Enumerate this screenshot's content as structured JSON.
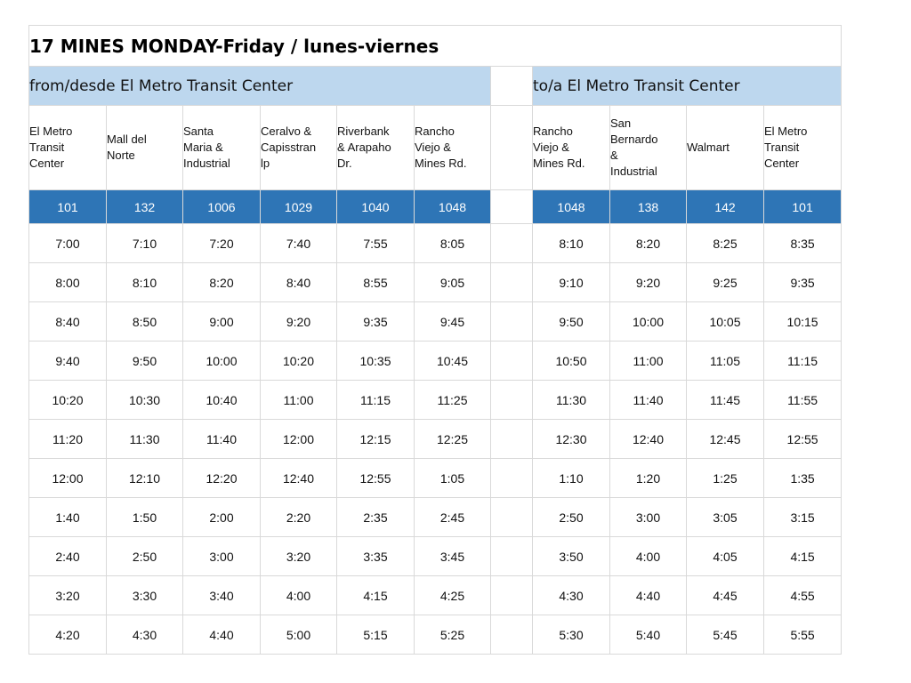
{
  "title": "17 MINES MONDAY-Friday / lunes-viernes",
  "from_header": "from/desde El Metro Transit Center",
  "to_header": "to/a El Metro Transit Center",
  "from_stops": [
    {
      "name": "El Metro\nTransit\nCenter",
      "id": "101"
    },
    {
      "name": "Mall del\nNorte",
      "id": "132"
    },
    {
      "name": "Santa\nMaria &\nIndustrial",
      "id": "1006"
    },
    {
      "name": "Ceralvo &\nCapisstran\nlp",
      "id": "1029"
    },
    {
      "name": "Riverbank\n& Arapaho\nDr.",
      "id": "1040"
    },
    {
      "name": "Rancho\nViejo &\nMines Rd.",
      "id": "1048"
    }
  ],
  "to_stops": [
    {
      "name": "Rancho\nViejo &\nMines Rd.",
      "id": "1048"
    },
    {
      "name": "San\nBernardo\n&\nIndustrial",
      "id": "138"
    },
    {
      "name": "Walmart",
      "id": "142"
    },
    {
      "name": "El Metro\nTransit\nCenter",
      "id": "101"
    }
  ],
  "trips": [
    {
      "from": [
        "7:00",
        "7:10",
        "7:20",
        "7:40",
        "7:55",
        "8:05"
      ],
      "to": [
        "8:10",
        "8:20",
        "8:25",
        "8:35"
      ]
    },
    {
      "from": [
        "8:00",
        "8:10",
        "8:20",
        "8:40",
        "8:55",
        "9:05"
      ],
      "to": [
        "9:10",
        "9:20",
        "9:25",
        "9:35"
      ]
    },
    {
      "from": [
        "8:40",
        "8:50",
        "9:00",
        "9:20",
        "9:35",
        "9:45"
      ],
      "to": [
        "9:50",
        "10:00",
        "10:05",
        "10:15"
      ]
    },
    {
      "from": [
        "9:40",
        "9:50",
        "10:00",
        "10:20",
        "10:35",
        "10:45"
      ],
      "to": [
        "10:50",
        "11:00",
        "11:05",
        "11:15"
      ]
    },
    {
      "from": [
        "10:20",
        "10:30",
        "10:40",
        "11:00",
        "11:15",
        "11:25"
      ],
      "to": [
        "11:30",
        "11:40",
        "11:45",
        "11:55"
      ]
    },
    {
      "from": [
        "11:20",
        "11:30",
        "11:40",
        "12:00",
        "12:15",
        "12:25"
      ],
      "to": [
        "12:30",
        "12:40",
        "12:45",
        "12:55"
      ]
    },
    {
      "from": [
        "12:00",
        "12:10",
        "12:20",
        "12:40",
        "12:55",
        "1:05"
      ],
      "to": [
        "1:10",
        "1:20",
        "1:25",
        "1:35"
      ]
    },
    {
      "from": [
        "1:40",
        "1:50",
        "2:00",
        "2:20",
        "2:35",
        "2:45"
      ],
      "to": [
        "2:50",
        "3:00",
        "3:05",
        "3:15"
      ]
    },
    {
      "from": [
        "2:40",
        "2:50",
        "3:00",
        "3:20",
        "3:35",
        "3:45"
      ],
      "to": [
        "3:50",
        "4:00",
        "4:05",
        "4:15"
      ]
    },
    {
      "from": [
        "3:20",
        "3:30",
        "3:40",
        "4:00",
        "4:15",
        "4:25"
      ],
      "to": [
        "4:30",
        "4:40",
        "4:45",
        "4:55"
      ]
    },
    {
      "from": [
        "4:20",
        "4:30",
        "4:40",
        "5:00",
        "5:15",
        "5:25"
      ],
      "to": [
        "5:30",
        "5:40",
        "5:45",
        "5:55"
      ]
    }
  ],
  "colors": {
    "direction_header_bg": "#bdd7ee",
    "stop_id_bg": "#2e75b6",
    "stop_id_text": "#ffffff",
    "grid_line": "#d9d9d9"
  }
}
